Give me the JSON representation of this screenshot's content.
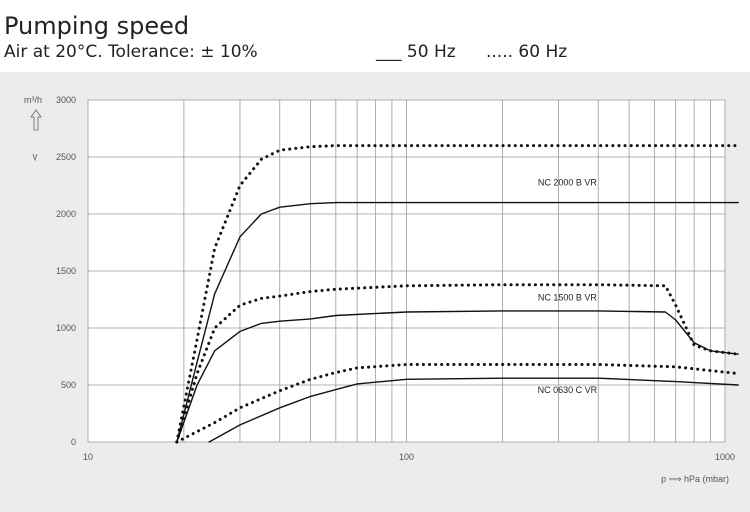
{
  "header": {
    "title": "Pumping speed",
    "subtitle": "Air at 20°C. Tolerance: ± 10%",
    "legend_50": "___ 50 Hz",
    "legend_60": "..... 60 Hz"
  },
  "chart_data": {
    "type": "line",
    "xscale": "log",
    "xlim": [
      10,
      1000
    ],
    "ylim": [
      0,
      3000
    ],
    "x_ticks": [
      10,
      100,
      1000
    ],
    "x_tick_labels": [
      "10",
      "100",
      "1000"
    ],
    "y_ticks": [
      0,
      500,
      1000,
      1500,
      2000,
      2500,
      3000
    ],
    "y_tick_labels": [
      "0",
      "500",
      "1000",
      "1500",
      "2000",
      "2500",
      "3000"
    ],
    "ylabel": "m³/h",
    "xlabel": "p ⟹ hPa (mbar)",
    "grid": true,
    "series": [
      {
        "name": "NC 2000 B VR",
        "freq": "50 Hz",
        "style": "solid",
        "x": [
          19,
          22,
          25,
          30,
          35,
          40,
          50,
          60,
          100,
          300,
          600,
          1100
        ],
        "y": [
          0,
          700,
          1300,
          1800,
          2000,
          2060,
          2090,
          2100,
          2100,
          2100,
          2100,
          2100
        ]
      },
      {
        "name": "NC 2000 B VR",
        "freq": "60 Hz",
        "style": "dotted",
        "x": [
          19,
          22,
          25,
          30,
          35,
          40,
          50,
          60,
          100,
          300,
          600,
          1100
        ],
        "y": [
          0,
          900,
          1700,
          2250,
          2480,
          2560,
          2590,
          2600,
          2600,
          2600,
          2600,
          2600
        ]
      },
      {
        "name": "NC 1500 B VR",
        "freq": "50 Hz",
        "style": "solid",
        "x": [
          19,
          22,
          25,
          30,
          35,
          40,
          50,
          60,
          100,
          200,
          400,
          650,
          700,
          800,
          900,
          1100
        ],
        "y": [
          0,
          500,
          800,
          970,
          1040,
          1060,
          1080,
          1110,
          1140,
          1150,
          1150,
          1140,
          1070,
          870,
          800,
          770
        ]
      },
      {
        "name": "NC 1500 B VR",
        "freq": "60 Hz",
        "style": "dotted",
        "x": [
          19,
          22,
          25,
          30,
          35,
          40,
          50,
          60,
          100,
          200,
          400,
          650,
          700,
          800,
          900,
          1100
        ],
        "y": [
          0,
          600,
          1000,
          1200,
          1260,
          1280,
          1320,
          1340,
          1370,
          1380,
          1380,
          1370,
          1200,
          850,
          800,
          770
        ]
      },
      {
        "name": "NC 0630 C VR",
        "freq": "50 Hz",
        "style": "solid",
        "x": [
          24,
          30,
          40,
          50,
          60,
          70,
          100,
          200,
          400,
          700,
          1100
        ],
        "y": [
          0,
          150,
          300,
          400,
          460,
          510,
          550,
          560,
          560,
          530,
          500
        ]
      },
      {
        "name": "NC 0630 C VR",
        "freq": "60 Hz",
        "style": "dotted",
        "x": [
          19,
          25,
          30,
          40,
          50,
          60,
          70,
          100,
          200,
          400,
          700,
          1100
        ],
        "y": [
          0,
          170,
          300,
          450,
          550,
          610,
          650,
          680,
          680,
          680,
          660,
          600
        ]
      }
    ],
    "labels": [
      {
        "text": "NC 2000 B VR",
        "x": 320,
        "y": 2250
      },
      {
        "text": "NC 1500 B VR",
        "x": 320,
        "y": 1240
      },
      {
        "text": "NC 0630 C VR",
        "x": 320,
        "y": 430
      }
    ]
  }
}
